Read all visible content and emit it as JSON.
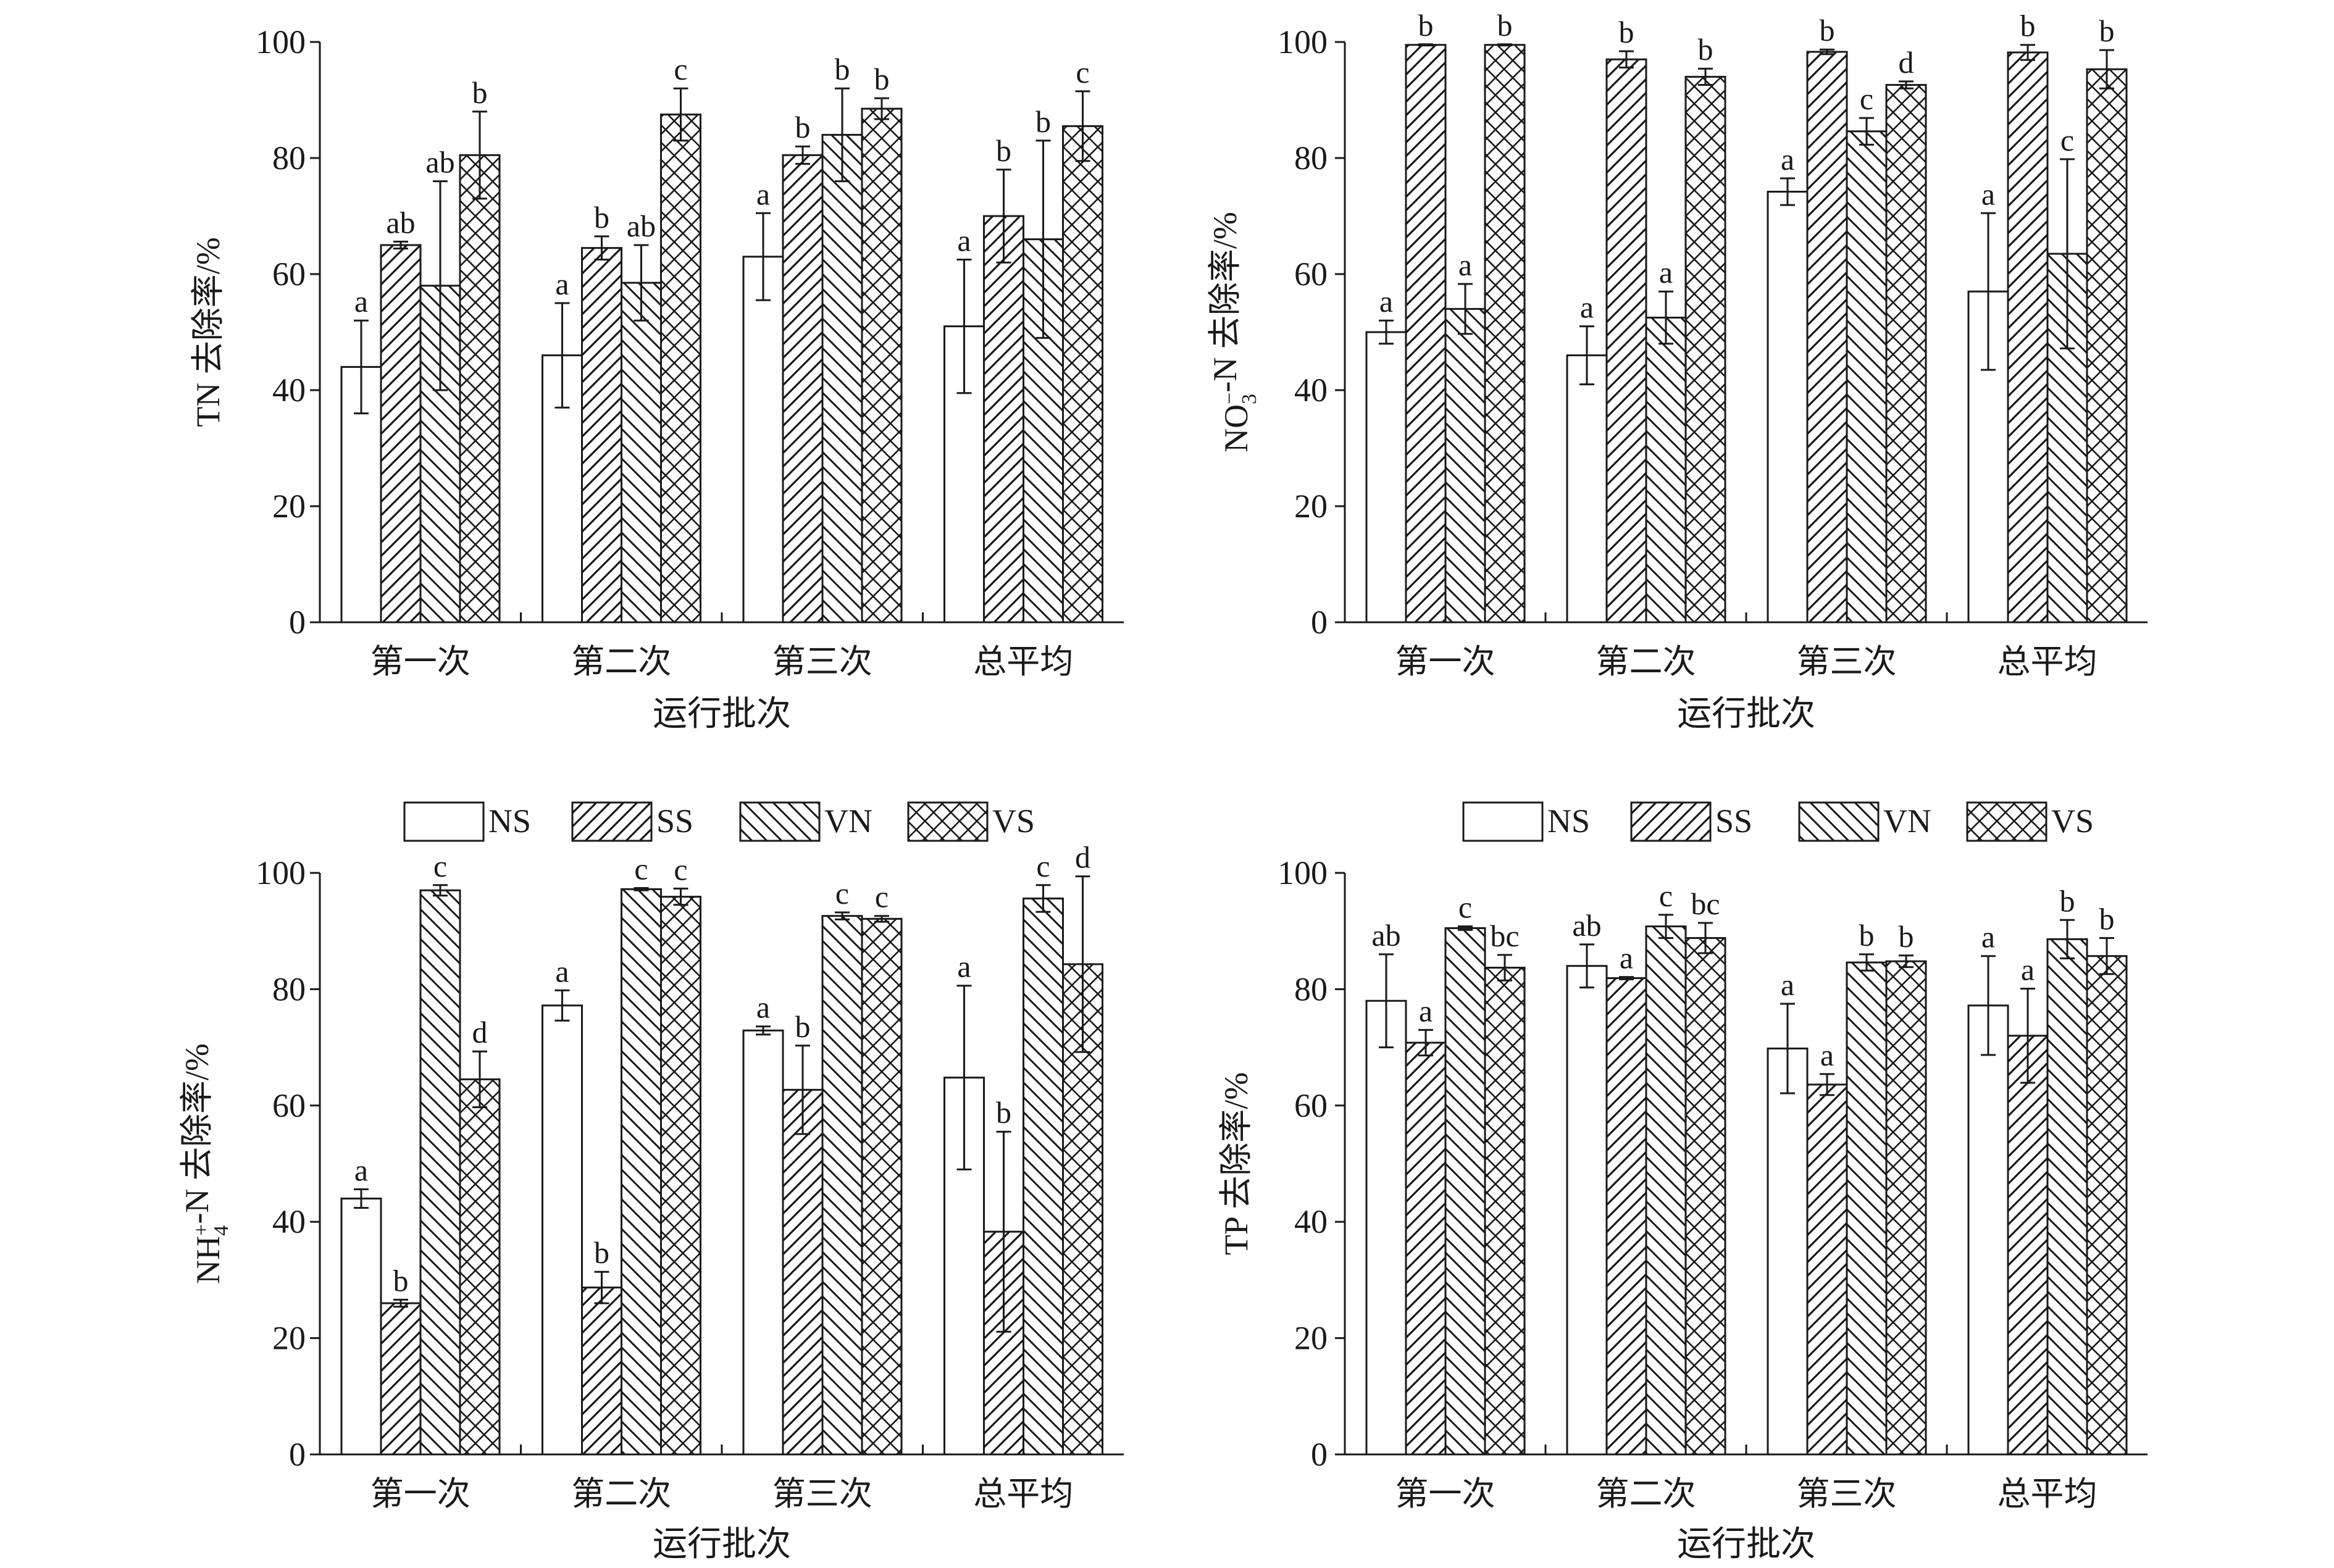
{
  "figure": {
    "legend_items": [
      "NS",
      "SS",
      "VN",
      "VS"
    ],
    "xlabel": "运行批次"
  },
  "chart_data": [
    {
      "type": "bar",
      "id": "tn",
      "title": "",
      "ylabel": "TN 去除率/%",
      "ylabel_parts": [
        {
          "t": "TN 去除率/%"
        }
      ],
      "xlabel": "运行批次",
      "ylim": [
        0,
        100
      ],
      "yticks": [
        0,
        20,
        40,
        60,
        80,
        100
      ],
      "categories": [
        "第一次",
        "第二次",
        "第三次",
        "总平均"
      ],
      "legend": false,
      "series": [
        {
          "name": "NS",
          "values": [
            44.0,
            46.0,
            63.0,
            51.0
          ],
          "err": [
            8.0,
            9.0,
            7.5,
            11.5
          ],
          "letters": [
            "a",
            "a",
            "a",
            "a"
          ]
        },
        {
          "name": "SS",
          "values": [
            65.0,
            64.5,
            80.5,
            70.0
          ],
          "err": [
            0.6,
            2.0,
            1.5,
            8.0
          ],
          "letters": [
            "ab",
            "b",
            "b",
            "b"
          ]
        },
        {
          "name": "VN",
          "values": [
            58.0,
            58.5,
            84.0,
            66.0
          ],
          "err": [
            18.0,
            6.5,
            8.0,
            17.0
          ],
          "letters": [
            "ab",
            "ab",
            "b",
            "b"
          ]
        },
        {
          "name": "VS",
          "values": [
            80.5,
            87.5,
            88.5,
            85.5
          ],
          "err": [
            7.5,
            4.5,
            1.8,
            6.0
          ],
          "letters": [
            "b",
            "c",
            "b",
            "c"
          ]
        }
      ]
    },
    {
      "type": "bar",
      "id": "no3",
      "title": "",
      "ylabel": "NO3−-N 去除率/%",
      "ylabel_parts": [
        {
          "t": "NO"
        },
        {
          "t": "3",
          "sub": true,
          "sup": "−"
        },
        {
          "t": "-N 去除率/%"
        }
      ],
      "xlabel": "运行批次",
      "ylim": [
        0,
        100
      ],
      "yticks": [
        0,
        20,
        40,
        60,
        80,
        100
      ],
      "categories": [
        "第一次",
        "第二次",
        "第三次",
        "总平均"
      ],
      "legend": false,
      "series": [
        {
          "name": "NS",
          "values": [
            50.0,
            46.0,
            74.2,
            57.0
          ],
          "err": [
            2.0,
            5.0,
            2.3,
            13.5
          ],
          "letters": [
            "a",
            "a",
            "a",
            "a"
          ]
        },
        {
          "name": "SS",
          "values": [
            99.5,
            97.0,
            98.3,
            98.2
          ],
          "err": [
            0.1,
            1.4,
            0.4,
            1.3
          ],
          "letters": [
            "b",
            "b",
            "b",
            "b"
          ]
        },
        {
          "name": "VN",
          "values": [
            54.0,
            52.5,
            84.6,
            63.5
          ],
          "err": [
            4.3,
            4.5,
            2.3,
            16.3
          ],
          "letters": [
            "a",
            "a",
            "c",
            "c"
          ]
        },
        {
          "name": "VS",
          "values": [
            99.5,
            94.0,
            92.6,
            95.3
          ],
          "err": [
            0.1,
            1.4,
            0.6,
            3.3
          ],
          "letters": [
            "b",
            "b",
            "d",
            "b"
          ]
        }
      ]
    },
    {
      "type": "bar",
      "id": "nh4",
      "title": "",
      "ylabel": "NH4+-N 去除率/%",
      "ylabel_parts": [
        {
          "t": "NH"
        },
        {
          "t": "4",
          "sub": true,
          "sup": "+"
        },
        {
          "t": "-N 去除率/%"
        }
      ],
      "xlabel": "运行批次",
      "ylim": [
        0,
        100
      ],
      "yticks": [
        0,
        20,
        40,
        60,
        80,
        100
      ],
      "categories": [
        "第一次",
        "第二次",
        "第三次",
        "总平均"
      ],
      "legend": true,
      "series": [
        {
          "name": "NS",
          "values": [
            44.0,
            77.2,
            72.9,
            64.8
          ],
          "err": [
            1.6,
            2.6,
            0.7,
            15.8
          ],
          "letters": [
            "a",
            "a",
            "a",
            "a"
          ]
        },
        {
          "name": "SS",
          "values": [
            26.0,
            28.7,
            62.7,
            38.3
          ],
          "err": [
            0.6,
            2.7,
            7.6,
            17.2
          ],
          "letters": [
            "b",
            "b",
            "b",
            "b"
          ]
        },
        {
          "name": "VN",
          "values": [
            97.0,
            97.2,
            92.6,
            95.6
          ],
          "err": [
            0.9,
            0.2,
            0.6,
            2.3
          ],
          "letters": [
            "c",
            "c",
            "c",
            "c"
          ]
        },
        {
          "name": "VS",
          "values": [
            64.5,
            95.9,
            92.1,
            84.3
          ],
          "err": [
            4.8,
            1.4,
            0.5,
            15.1
          ],
          "letters": [
            "d",
            "c",
            "c",
            "d"
          ]
        }
      ]
    },
    {
      "type": "bar",
      "id": "tp",
      "title": "",
      "ylabel": "TP 去除率/%",
      "ylabel_parts": [
        {
          "t": "TP 去除率/%"
        }
      ],
      "xlabel": "运行批次",
      "ylim": [
        0,
        100
      ],
      "yticks": [
        0,
        20,
        40,
        60,
        80,
        100
      ],
      "categories": [
        "第一次",
        "第二次",
        "第三次",
        "总平均"
      ],
      "legend": true,
      "series": [
        {
          "name": "NS",
          "values": [
            78.0,
            84.0,
            69.8,
            77.2
          ],
          "err": [
            8.0,
            3.7,
            7.7,
            8.5
          ],
          "letters": [
            "ab",
            "ab",
            "a",
            "a"
          ]
        },
        {
          "name": "SS",
          "values": [
            70.8,
            81.9,
            63.6,
            72.0
          ],
          "err": [
            2.2,
            0.2,
            1.8,
            8.1
          ],
          "letters": [
            "a",
            "a",
            "a",
            "a"
          ]
        },
        {
          "name": "VN",
          "values": [
            90.5,
            90.8,
            84.6,
            88.6
          ],
          "err": [
            0.3,
            2.0,
            1.4,
            3.3
          ],
          "letters": [
            "c",
            "c",
            "b",
            "b"
          ]
        },
        {
          "name": "VS",
          "values": [
            83.7,
            88.8,
            84.8,
            85.7
          ],
          "err": [
            2.2,
            2.6,
            1.0,
            3.1
          ],
          "letters": [
            "bc",
            "bc",
            "b",
            "b"
          ]
        }
      ]
    }
  ]
}
